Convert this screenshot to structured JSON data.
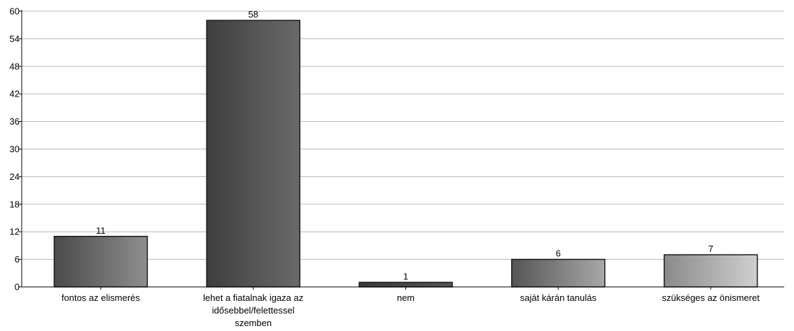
{
  "chart_data": {
    "type": "bar",
    "title": "",
    "xlabel": "",
    "ylabel": "",
    "categories": [
      [
        "fontos az elismerés"
      ],
      [
        "lehet a fiatalnak igaza az",
        "idősebbel/felettessel",
        "szemben"
      ],
      [
        "nem"
      ],
      [
        "saját kárán tanulás"
      ],
      [
        "szükséges az önismeret"
      ]
    ],
    "values": [
      11,
      58,
      1,
      6,
      7
    ],
    "value_labels": [
      "11",
      "58",
      "1",
      "6",
      "7"
    ],
    "ylim": [
      0,
      60
    ],
    "yticks": [
      0,
      6,
      12,
      18,
      24,
      30,
      36,
      42,
      48,
      54,
      60
    ],
    "ytick_labels": [
      "0",
      "6",
      "12",
      "18",
      "24",
      "30",
      "36",
      "42",
      "48",
      "54",
      "60"
    ],
    "grid": true,
    "bar_gradients": [
      [
        "#4a4a4a",
        "#8e8e8e"
      ],
      [
        "#3e3e3e",
        "#6a6a6a"
      ],
      [
        "#3a3a3a",
        "#555555"
      ],
      [
        "#555555",
        "#a8a8a8"
      ],
      [
        "#8a8a8a",
        "#cfcfcf"
      ]
    ],
    "grid_color": "#b5b5b5",
    "axis_color": "#000000"
  }
}
